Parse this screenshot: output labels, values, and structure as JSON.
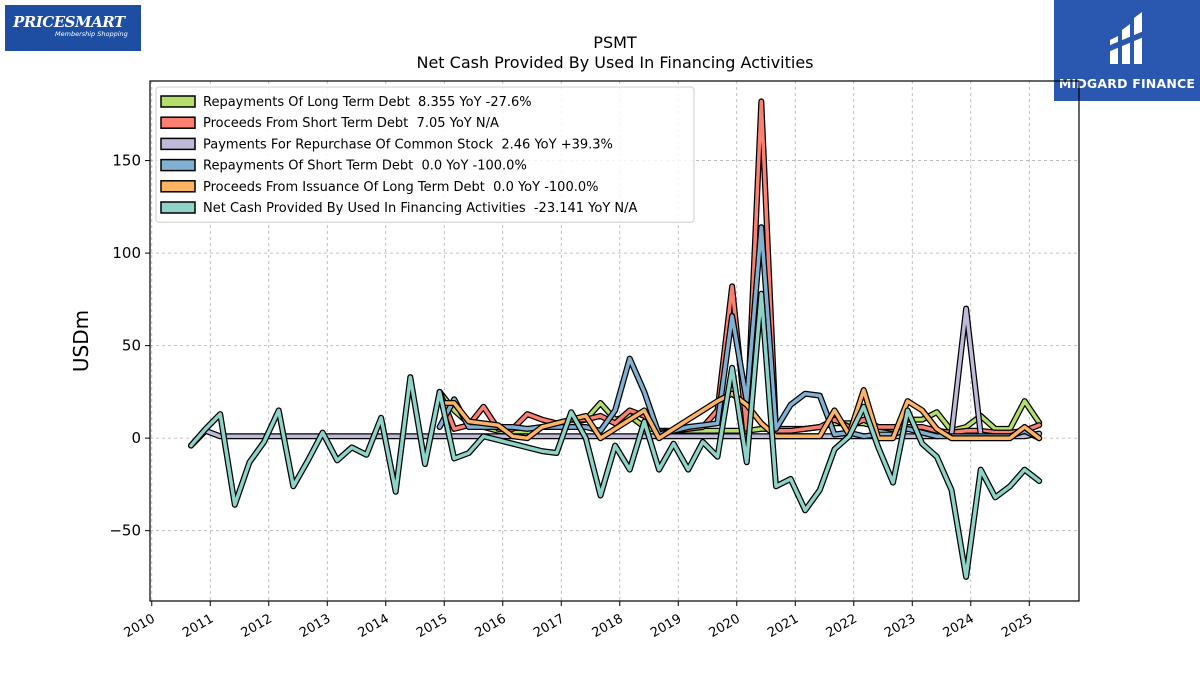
{
  "logos": {
    "left": {
      "brand": "PRICESMART",
      "tagline": "Membership Shopping"
    },
    "right": {
      "name": "MIDGARD FINANCE"
    }
  },
  "chart_data": {
    "type": "line",
    "title": "PSMT",
    "subtitle": "Net Cash Provided By Used In Financing Activities",
    "xlabel": "",
    "ylabel": "USDm",
    "xlim": [
      2009.97,
      2025.85
    ],
    "ylim": [
      -88,
      193
    ],
    "x_ticks": [
      2010,
      2011,
      2012,
      2013,
      2014,
      2015,
      2016,
      2017,
      2018,
      2019,
      2020,
      2021,
      2022,
      2023,
      2024,
      2025
    ],
    "y_ticks": [
      -50,
      0,
      50,
      100,
      150
    ],
    "grid": true,
    "legend_position": "top-left",
    "series": [
      {
        "name": "Repayments Of Long Term Debt",
        "legend": "Repayments Of Long Term Debt  8.355 YoY -27.6%",
        "color": "#b3de69",
        "points": [
          [
            2014.92,
            25
          ],
          [
            2015.17,
            15
          ],
          [
            2015.42,
            8
          ],
          [
            2015.67,
            6
          ],
          [
            2015.92,
            4
          ],
          [
            2016.17,
            3
          ],
          [
            2016.42,
            3
          ],
          [
            2016.67,
            6
          ],
          [
            2016.92,
            8
          ],
          [
            2017.17,
            8
          ],
          [
            2017.42,
            10
          ],
          [
            2017.67,
            19
          ],
          [
            2017.92,
            10
          ],
          [
            2018.17,
            12
          ],
          [
            2018.42,
            6
          ],
          [
            2018.67,
            4
          ],
          [
            2018.92,
            4
          ],
          [
            2019.17,
            4
          ],
          [
            2019.42,
            4
          ],
          [
            2019.67,
            4
          ],
          [
            2019.92,
            4
          ],
          [
            2020.17,
            4
          ],
          [
            2020.42,
            5
          ],
          [
            2020.67,
            5
          ],
          [
            2020.92,
            5
          ],
          [
            2021.17,
            5
          ],
          [
            2021.42,
            6
          ],
          [
            2021.67,
            8
          ],
          [
            2021.92,
            8
          ],
          [
            2022.17,
            8
          ],
          [
            2022.42,
            6
          ],
          [
            2022.67,
            5
          ],
          [
            2022.92,
            10
          ],
          [
            2023.17,
            10
          ],
          [
            2023.42,
            14
          ],
          [
            2023.67,
            4
          ],
          [
            2023.92,
            6
          ],
          [
            2024.17,
            12
          ],
          [
            2024.42,
            5
          ],
          [
            2024.67,
            5
          ],
          [
            2024.92,
            20
          ],
          [
            2025.17,
            8.355
          ]
        ]
      },
      {
        "name": "Proceeds From Short Term Debt",
        "legend": "Proceeds From Short Term Debt  7.05 YoY N/A",
        "color": "#fb8072",
        "points": [
          [
            2014.92,
            25
          ],
          [
            2015.17,
            5
          ],
          [
            2015.42,
            7
          ],
          [
            2015.67,
            17
          ],
          [
            2015.92,
            5
          ],
          [
            2016.17,
            5
          ],
          [
            2016.42,
            13
          ],
          [
            2016.67,
            10
          ],
          [
            2016.92,
            8
          ],
          [
            2017.17,
            10
          ],
          [
            2017.42,
            10
          ],
          [
            2017.67,
            12
          ],
          [
            2017.92,
            8
          ],
          [
            2018.17,
            15
          ],
          [
            2018.42,
            12
          ],
          [
            2018.67,
            3
          ],
          [
            2018.92,
            4
          ],
          [
            2019.17,
            5
          ],
          [
            2019.42,
            6
          ],
          [
            2019.67,
            15
          ],
          [
            2019.92,
            82
          ],
          [
            2020.17,
            5
          ],
          [
            2020.42,
            182
          ],
          [
            2020.67,
            4
          ],
          [
            2020.92,
            4
          ],
          [
            2021.17,
            5
          ],
          [
            2021.42,
            6
          ],
          [
            2021.67,
            10
          ],
          [
            2021.92,
            6
          ],
          [
            2022.17,
            10
          ],
          [
            2022.42,
            6
          ],
          [
            2022.67,
            6
          ],
          [
            2022.92,
            6
          ],
          [
            2023.17,
            6
          ],
          [
            2023.42,
            4
          ],
          [
            2023.67,
            3
          ],
          [
            2023.92,
            4
          ],
          [
            2024.17,
            4
          ],
          [
            2024.42,
            3
          ],
          [
            2024.67,
            3
          ],
          [
            2024.92,
            4
          ],
          [
            2025.17,
            7.05
          ]
        ]
      },
      {
        "name": "Payments For Repurchase Of Common Stock",
        "legend": "Payments For Repurchase Of Common Stock  2.46 YoY +39.3%",
        "color": "#bebada",
        "points": [
          [
            2010.67,
            -4
          ],
          [
            2010.92,
            4
          ],
          [
            2011.17,
            1
          ],
          [
            2011.42,
            1
          ],
          [
            2011.67,
            1
          ],
          [
            2011.92,
            1
          ],
          [
            2012.17,
            1
          ],
          [
            2012.42,
            1
          ],
          [
            2012.67,
            1
          ],
          [
            2012.92,
            1
          ],
          [
            2013.17,
            1
          ],
          [
            2013.42,
            1
          ],
          [
            2013.67,
            1
          ],
          [
            2013.92,
            1
          ],
          [
            2014.17,
            1
          ],
          [
            2014.42,
            1
          ],
          [
            2014.67,
            1
          ],
          [
            2014.92,
            1
          ],
          [
            2015.17,
            1
          ],
          [
            2015.42,
            1
          ],
          [
            2015.67,
            1
          ],
          [
            2015.92,
            1
          ],
          [
            2016.17,
            1
          ],
          [
            2016.42,
            1
          ],
          [
            2016.67,
            1
          ],
          [
            2016.92,
            1
          ],
          [
            2017.17,
            1
          ],
          [
            2017.42,
            1
          ],
          [
            2017.67,
            1
          ],
          [
            2017.92,
            1
          ],
          [
            2018.17,
            1
          ],
          [
            2018.42,
            1
          ],
          [
            2018.67,
            1
          ],
          [
            2018.92,
            1
          ],
          [
            2019.17,
            1
          ],
          [
            2019.42,
            1
          ],
          [
            2019.67,
            1
          ],
          [
            2019.92,
            1
          ],
          [
            2020.17,
            1
          ],
          [
            2020.42,
            1
          ],
          [
            2020.67,
            1
          ],
          [
            2020.92,
            1
          ],
          [
            2021.17,
            1
          ],
          [
            2021.42,
            1
          ],
          [
            2021.67,
            1
          ],
          [
            2021.92,
            1
          ],
          [
            2022.17,
            1
          ],
          [
            2022.42,
            1
          ],
          [
            2022.67,
            1
          ],
          [
            2022.92,
            1
          ],
          [
            2023.17,
            1
          ],
          [
            2023.42,
            1
          ],
          [
            2023.67,
            2
          ],
          [
            2023.92,
            70
          ],
          [
            2024.17,
            2
          ],
          [
            2024.42,
            1
          ],
          [
            2024.67,
            1
          ],
          [
            2024.92,
            1
          ],
          [
            2025.17,
            2.46
          ]
        ]
      },
      {
        "name": "Repayments Of Short Term Debt",
        "legend": "Repayments Of Short Term Debt  0.0 YoY -100.0%",
        "color": "#80b1d3",
        "points": [
          [
            2014.92,
            6
          ],
          [
            2015.17,
            21
          ],
          [
            2015.42,
            6
          ],
          [
            2015.67,
            6
          ],
          [
            2015.92,
            6
          ],
          [
            2016.17,
            6
          ],
          [
            2016.42,
            5
          ],
          [
            2016.67,
            6
          ],
          [
            2016.92,
            6
          ],
          [
            2017.17,
            6
          ],
          [
            2017.42,
            6
          ],
          [
            2017.67,
            4
          ],
          [
            2017.92,
            15
          ],
          [
            2018.17,
            43
          ],
          [
            2018.42,
            25
          ],
          [
            2018.67,
            2
          ],
          [
            2018.92,
            4
          ],
          [
            2019.17,
            6
          ],
          [
            2019.42,
            7
          ],
          [
            2019.67,
            8
          ],
          [
            2019.92,
            66
          ],
          [
            2020.17,
            20
          ],
          [
            2020.42,
            114
          ],
          [
            2020.67,
            5
          ],
          [
            2020.92,
            18
          ],
          [
            2021.17,
            24
          ],
          [
            2021.42,
            23
          ],
          [
            2021.67,
            2
          ],
          [
            2021.92,
            3
          ],
          [
            2022.17,
            1
          ],
          [
            2022.42,
            2
          ],
          [
            2022.67,
            2
          ],
          [
            2022.92,
            5
          ],
          [
            2023.17,
            3
          ],
          [
            2023.42,
            1
          ],
          [
            2023.67,
            1
          ],
          [
            2023.92,
            1
          ],
          [
            2024.17,
            1
          ],
          [
            2024.42,
            1
          ],
          [
            2024.67,
            1
          ],
          [
            2024.92,
            4
          ],
          [
            2025.17,
            0
          ]
        ]
      },
      {
        "name": "Proceeds From Issuance Of Long Term Debt",
        "legend": "Proceeds From Issuance Of Long Term Debt  0.0 YoY -100.0%",
        "color": "#fdb462",
        "points": [
          [
            2014.92,
            19
          ],
          [
            2015.17,
            19
          ],
          [
            2015.42,
            9
          ],
          [
            2015.67,
            8
          ],
          [
            2015.92,
            7
          ],
          [
            2016.17,
            1
          ],
          [
            2016.42,
            0
          ],
          [
            2016.67,
            6
          ],
          [
            2016.92,
            8
          ],
          [
            2017.17,
            10
          ],
          [
            2017.42,
            12
          ],
          [
            2017.67,
            0
          ],
          [
            2017.92,
            5
          ],
          [
            2018.17,
            10
          ],
          [
            2018.42,
            15
          ],
          [
            2018.67,
            0
          ],
          [
            2018.92,
            5
          ],
          [
            2019.17,
            10
          ],
          [
            2019.42,
            15
          ],
          [
            2019.67,
            20
          ],
          [
            2019.92,
            24
          ],
          [
            2020.17,
            18
          ],
          [
            2020.42,
            8
          ],
          [
            2020.67,
            1
          ],
          [
            2020.92,
            1
          ],
          [
            2021.17,
            1
          ],
          [
            2021.42,
            1
          ],
          [
            2021.67,
            15
          ],
          [
            2021.92,
            2
          ],
          [
            2022.17,
            26
          ],
          [
            2022.42,
            0
          ],
          [
            2022.67,
            0
          ],
          [
            2022.92,
            20
          ],
          [
            2023.17,
            15
          ],
          [
            2023.42,
            5
          ],
          [
            2023.67,
            0
          ],
          [
            2023.92,
            0
          ],
          [
            2024.17,
            0
          ],
          [
            2024.42,
            0
          ],
          [
            2024.67,
            0
          ],
          [
            2024.92,
            6
          ],
          [
            2025.17,
            0
          ]
        ]
      },
      {
        "name": "Net Cash Provided By Used In Financing Activities",
        "legend": "Net Cash Provided By Used In Financing Activities  -23.141 YoY N/A",
        "color": "#8dd3c7",
        "points": [
          [
            2010.67,
            -4
          ],
          [
            2010.92,
            5
          ],
          [
            2011.17,
            13
          ],
          [
            2011.42,
            -36
          ],
          [
            2011.67,
            -13
          ],
          [
            2011.92,
            -2
          ],
          [
            2012.17,
            15
          ],
          [
            2012.42,
            -26
          ],
          [
            2012.67,
            -12
          ],
          [
            2012.92,
            3
          ],
          [
            2013.17,
            -12
          ],
          [
            2013.42,
            -5
          ],
          [
            2013.67,
            -9
          ],
          [
            2013.92,
            11
          ],
          [
            2014.17,
            -29
          ],
          [
            2014.42,
            33
          ],
          [
            2014.67,
            -14
          ],
          [
            2014.92,
            25
          ],
          [
            2015.17,
            -11
          ],
          [
            2015.42,
            -8
          ],
          [
            2015.67,
            1
          ],
          [
            2015.92,
            -1
          ],
          [
            2016.17,
            -3
          ],
          [
            2016.42,
            -5
          ],
          [
            2016.67,
            -7
          ],
          [
            2016.92,
            -8
          ],
          [
            2017.17,
            14
          ],
          [
            2017.42,
            0
          ],
          [
            2017.67,
            -31
          ],
          [
            2017.92,
            -4
          ],
          [
            2018.17,
            -17
          ],
          [
            2018.42,
            9
          ],
          [
            2018.67,
            -17
          ],
          [
            2018.92,
            -3
          ],
          [
            2019.17,
            -17
          ],
          [
            2019.42,
            -2
          ],
          [
            2019.67,
            -10
          ],
          [
            2019.92,
            38
          ],
          [
            2020.17,
            -13
          ],
          [
            2020.42,
            78
          ],
          [
            2020.67,
            -26
          ],
          [
            2020.92,
            -22
          ],
          [
            2021.17,
            -39
          ],
          [
            2021.42,
            -28
          ],
          [
            2021.67,
            -6
          ],
          [
            2021.92,
            1
          ],
          [
            2022.17,
            17
          ],
          [
            2022.42,
            -5
          ],
          [
            2022.67,
            -24
          ],
          [
            2022.92,
            15
          ],
          [
            2023.17,
            -3
          ],
          [
            2023.42,
            -10
          ],
          [
            2023.67,
            -28
          ],
          [
            2023.92,
            -75
          ],
          [
            2024.17,
            -17
          ],
          [
            2024.42,
            -32
          ],
          [
            2024.67,
            -26
          ],
          [
            2024.92,
            -17
          ],
          [
            2025.17,
            -23.141
          ]
        ]
      }
    ]
  }
}
